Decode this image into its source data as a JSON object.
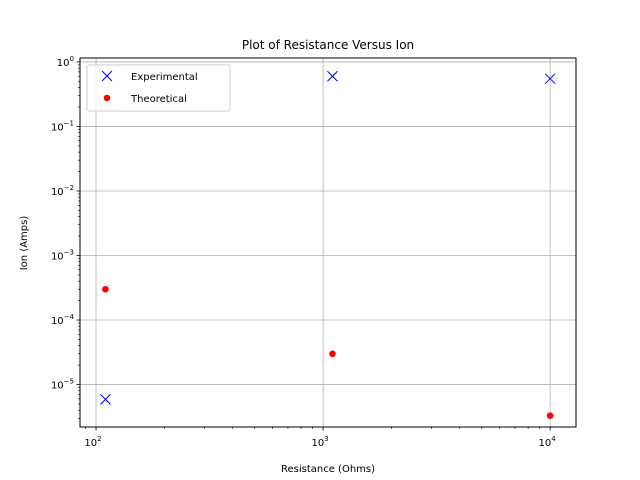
{
  "chart_data": {
    "type": "scatter",
    "title": "Plot of Resistance Versus Ion",
    "xlabel": "Resistance (Ohms)",
    "ylabel": "Ion (Amps)",
    "xscale": "log",
    "yscale": "log",
    "xlim": [
      85,
      13000
    ],
    "ylim": [
      2.2e-06,
      1.15
    ],
    "xticks": [
      {
        "value": 100,
        "base": "10",
        "exp": "2"
      },
      {
        "value": 1000,
        "base": "10",
        "exp": "3"
      },
      {
        "value": 10000,
        "base": "10",
        "exp": "4"
      }
    ],
    "yticks": [
      {
        "value": 1e-05,
        "base": "10",
        "exp": "−5"
      },
      {
        "value": 0.0001,
        "base": "10",
        "exp": "−4"
      },
      {
        "value": 0.001,
        "base": "10",
        "exp": "−3"
      },
      {
        "value": 0.01,
        "base": "10",
        "exp": "−2"
      },
      {
        "value": 0.1,
        "base": "10",
        "exp": "−1"
      },
      {
        "value": 1,
        "base": "10",
        "exp": "0"
      }
    ],
    "grid": true,
    "legend_position": "top-left",
    "series": [
      {
        "name": "Experimental",
        "marker": "x",
        "color": "#0000ff",
        "points": [
          {
            "x": 110,
            "y": 5.9e-06
          },
          {
            "x": 1100,
            "y": 0.6
          },
          {
            "x": 10000,
            "y": 0.55
          }
        ]
      },
      {
        "name": "Theoretical",
        "marker": "circle",
        "color": "#ff0000",
        "points": [
          {
            "x": 110,
            "y": 0.0003
          },
          {
            "x": 1100,
            "y": 3e-05
          },
          {
            "x": 10000,
            "y": 3.3e-06
          }
        ]
      }
    ]
  }
}
